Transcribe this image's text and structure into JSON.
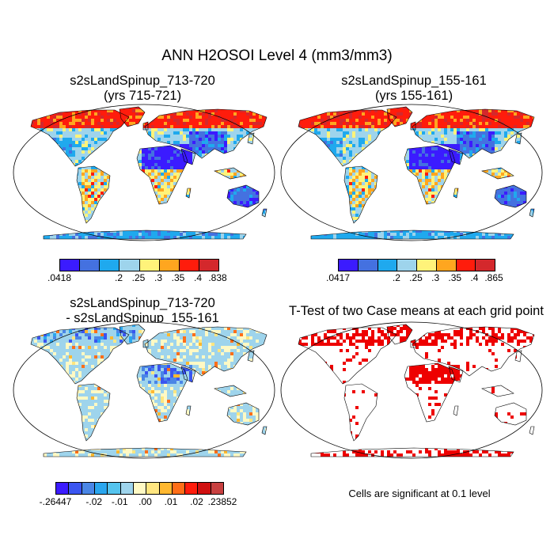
{
  "main_title": "ANN H2OSOI Level 4 (mm3/mm3)",
  "panels": [
    {
      "title_line1": "s2sLandSpinup_713-720",
      "title_line2": "(yrs 715-721)"
    },
    {
      "title_line1": "s2sLandSpinup_155-161",
      "title_line2": "(yrs 155-161)"
    },
    {
      "title_line1": "s2sLandSpinup_713-720",
      "title_line2": "- s2sLandSpinup_155-161"
    },
    {
      "title_line1": "T-Test of two Case means at each grid point"
    }
  ],
  "colorbars": [
    {
      "colors": [
        "#3b1bff",
        "#4471e0",
        "#1fa9ee",
        "#9ed4ec",
        "#fff37a",
        "#ffa61f",
        "#ff1c0c",
        "#d4282c"
      ],
      "labels": [
        ".0418",
        ".2",
        ".25",
        ".3",
        ".35",
        ".4",
        ".838"
      ]
    },
    {
      "colors": [
        "#3b1bff",
        "#4471e0",
        "#1fa9ee",
        "#9ed4ec",
        "#fff37a",
        "#ffa61f",
        "#ff1c0c",
        "#d4282c"
      ],
      "labels": [
        ".0417",
        ".2",
        ".25",
        ".3",
        ".35",
        ".4",
        ".865"
      ]
    },
    {
      "colors": [
        "#3b1bff",
        "#3a55f0",
        "#4a86e6",
        "#2aa6ee",
        "#55c4ee",
        "#9ed4ec",
        "#fff9c4",
        "#ffe680",
        "#ffb830",
        "#ff6e18",
        "#ff1c0c",
        "#d01010",
        "#c84040"
      ],
      "labels": [
        "-.26447",
        "-.02",
        "-.01",
        ".00",
        ".01",
        ".02",
        ".23852"
      ]
    }
  ],
  "significance_note": "Cells are significant at 0.1 level",
  "colors": {
    "significant": "#ee0000",
    "ocean": "#ffffff",
    "outline": "#000000"
  }
}
